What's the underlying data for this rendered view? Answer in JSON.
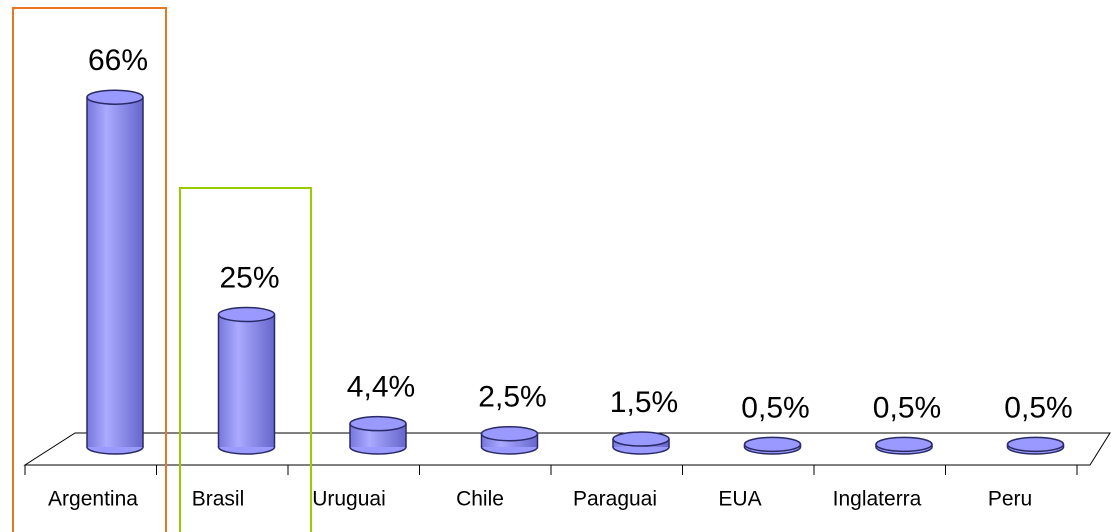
{
  "chart_data": {
    "type": "bar",
    "categories": [
      "Argentina",
      "Brasil",
      "Uruguai",
      "Chile",
      "Paraguai",
      "EUA",
      "Inglaterra",
      "Peru"
    ],
    "values": [
      66,
      25,
      4.4,
      2.5,
      1.5,
      0.5,
      0.5,
      0.5
    ],
    "value_labels": [
      "66%",
      "25%",
      "4,4%",
      "2,5%",
      "1,5%",
      "0,5%",
      "0,5%",
      "0,5%"
    ],
    "color": "#9999ff"
  }
}
